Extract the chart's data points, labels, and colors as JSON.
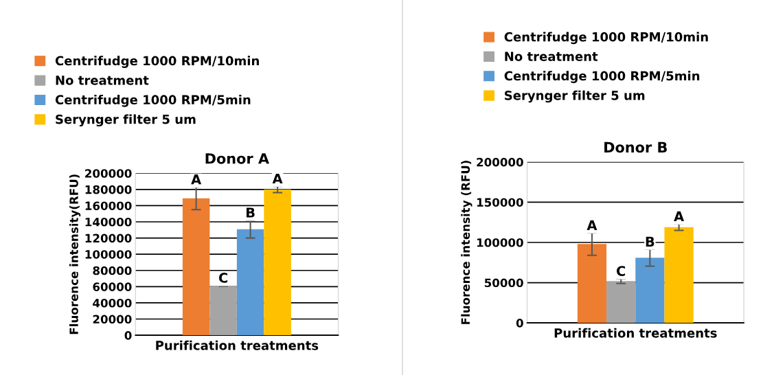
{
  "chart_data": [
    {
      "type": "bar",
      "title": "Donor A",
      "xlabel": "Purification treatments",
      "ylabel": "Fluorence intensity(RFU)",
      "categories": [
        null
      ],
      "ylim": [
        0,
        200000
      ],
      "yticks": [
        0,
        20000,
        40000,
        60000,
        80000,
        100000,
        120000,
        140000,
        160000,
        180000,
        200000
      ],
      "grid": "y",
      "legend": "top left",
      "series": [
        {
          "name": "Centrifudge 1000 RPM/10min",
          "color": "#ed7d31",
          "values": [
            169000
          ],
          "errors": [
            14000
          ],
          "value_labels": [
            "A"
          ]
        },
        {
          "name": "No treatment",
          "color": "#a5a5a5",
          "values": [
            61000
          ],
          "errors": [
            500
          ],
          "value_labels": [
            "C"
          ]
        },
        {
          "name": "Centrifudge 1000 RPM/5min",
          "color": "#5b9bd5",
          "values": [
            131000
          ],
          "errors": [
            11000
          ],
          "value_labels": [
            "B"
          ]
        },
        {
          "name": "Serynger filter 5 um",
          "color": "#ffc000",
          "values": [
            180000
          ],
          "errors": [
            4000
          ],
          "value_labels": [
            "A"
          ]
        }
      ]
    },
    {
      "type": "bar",
      "title": "Donor B",
      "xlabel": "Purification treatments",
      "ylabel": "Fluorence intensity (RFU)",
      "categories": [
        null
      ],
      "ylim": [
        0,
        200000
      ],
      "yticks": [
        0,
        50000,
        100000,
        150000,
        200000
      ],
      "grid": "y",
      "legend": "top",
      "series": [
        {
          "name": "Centrifudge 1000 RPM/10min",
          "color": "#ed7d31",
          "values": [
            98000
          ],
          "errors": [
            14000
          ],
          "value_labels": [
            "A"
          ]
        },
        {
          "name": "No treatment",
          "color": "#a5a5a5",
          "values": [
            52000
          ],
          "errors": [
            3000
          ],
          "value_labels": [
            "C"
          ]
        },
        {
          "name": "Centrifudge 1000 RPM/5min",
          "color": "#5b9bd5",
          "values": [
            81000
          ],
          "errors": [
            10500
          ],
          "value_labels": [
            "B"
          ]
        },
        {
          "name": "Serynger filter 5 um",
          "color": "#ffc000",
          "values": [
            119000
          ],
          "errors": [
            4000
          ],
          "value_labels": [
            "A"
          ]
        }
      ]
    }
  ]
}
